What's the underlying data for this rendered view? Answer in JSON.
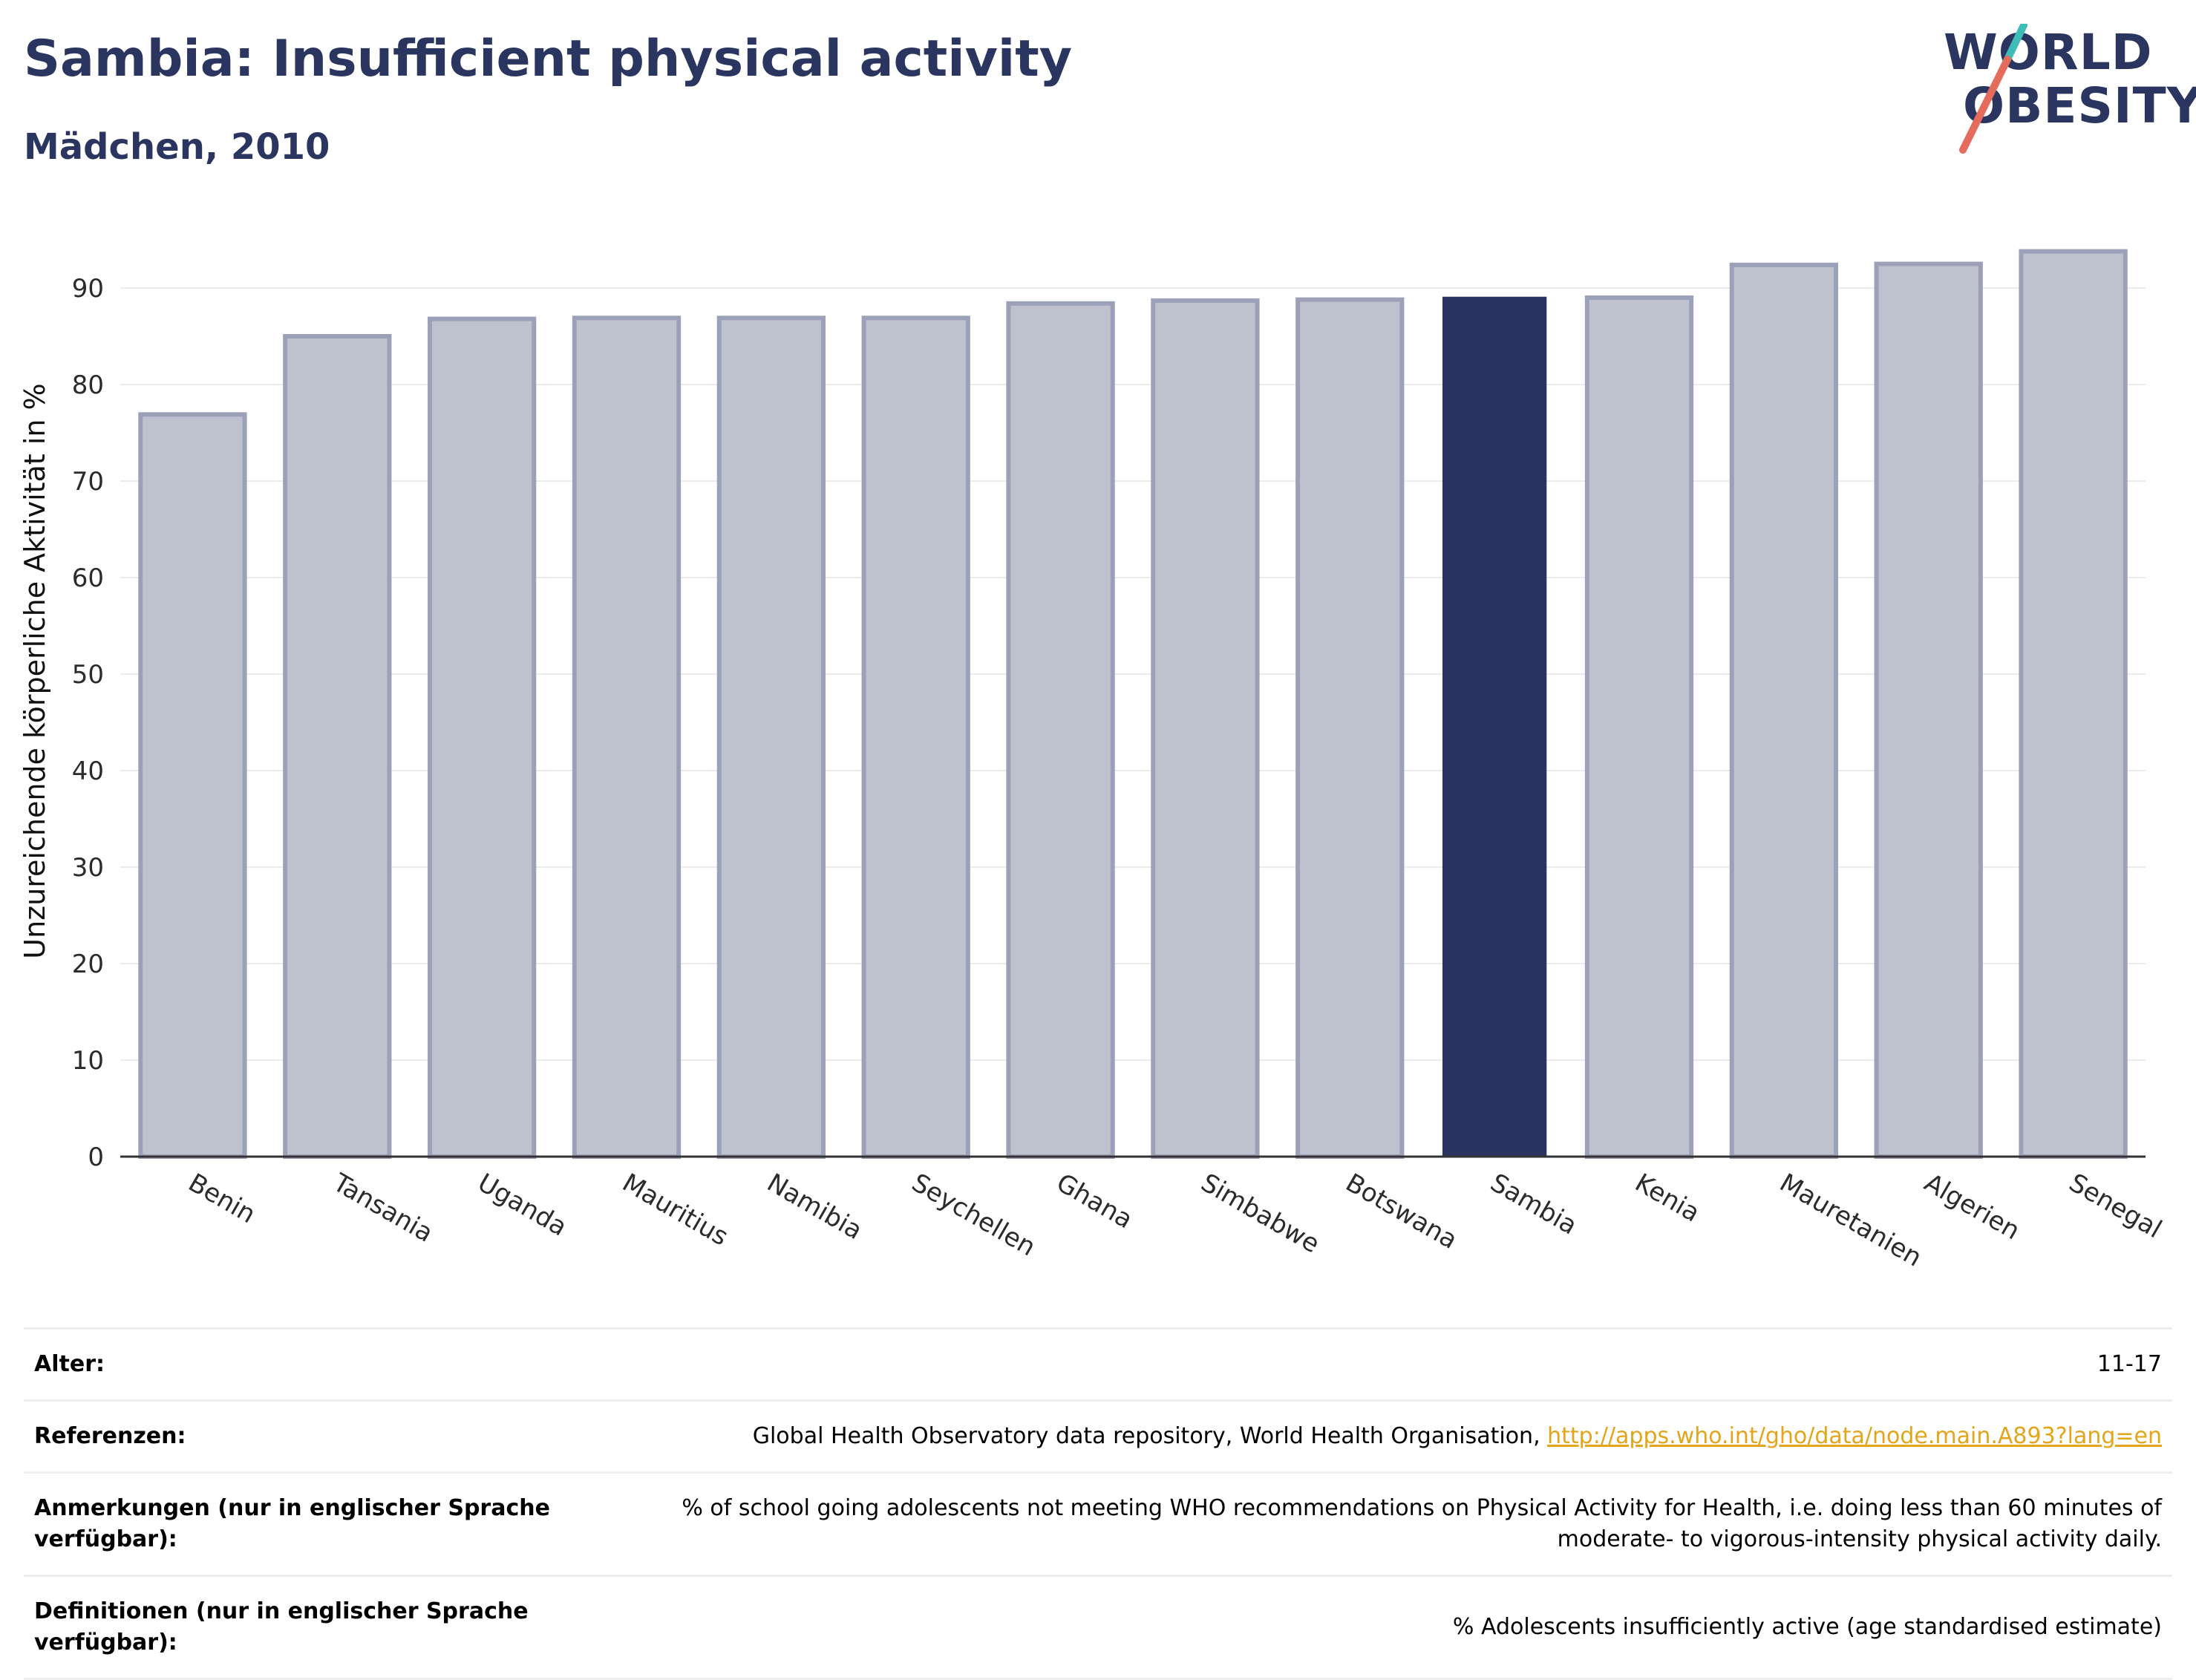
{
  "header": {
    "title": "Sambia: Insufficient physical activity",
    "subtitle": "Mädchen, 2010"
  },
  "logo": {
    "line1": "WORLD",
    "line2": "OBESITY",
    "colors": {
      "text": "#2a3560",
      "slash_teal": "#3dbcb8",
      "slash_coral": "#e56b5d"
    }
  },
  "colors": {
    "bar": "#bec2cf",
    "bar_stroke": "#9ba1b8",
    "highlight": "#293560",
    "grid": "#ececec",
    "axis": "#333333"
  },
  "chart_data": {
    "type": "bar",
    "title": "",
    "xlabel": "",
    "ylabel": "Unzureichende körperliche Aktivität in %",
    "categories": [
      "Benin",
      "Tansania",
      "Uganda",
      "Mauritius",
      "Namibia",
      "Seychellen",
      "Ghana",
      "Simbabwe",
      "Botswana",
      "Sambia",
      "Kenia",
      "Mauretanien",
      "Algerien",
      "Senegal"
    ],
    "values": [
      76.9,
      85.0,
      86.8,
      86.9,
      86.9,
      86.9,
      88.4,
      88.7,
      88.8,
      89.1,
      89.0,
      92.4,
      92.5,
      93.8
    ],
    "highlight": "Sambia",
    "ylim": [
      0,
      96
    ],
    "yticks": [
      0,
      10,
      20,
      30,
      40,
      50,
      60,
      70,
      80,
      90
    ],
    "grid": true,
    "legend": "none"
  },
  "info": {
    "rows": [
      {
        "key": "Alter:",
        "value": "11-17"
      },
      {
        "key": "Referenzen:",
        "value": "Global Health Observatory data repository, World Health Organisation, ",
        "link": "http://apps.who.int/gho/data/node.main.A893?lang=en"
      },
      {
        "key": "Anmerkungen (nur in englischer Sprache verfügbar):",
        "value": "% of school going adolescents not meeting WHO recommendations on Physical Activity for Health, i.e. doing less than 60 minutes of moderate- to vigorous-intensity physical activity daily."
      },
      {
        "key": "Definitionen (nur in englischer Sprache verfügbar):",
        "value": "% Adolescents insufficiently active (age standardised estimate)"
      }
    ]
  }
}
